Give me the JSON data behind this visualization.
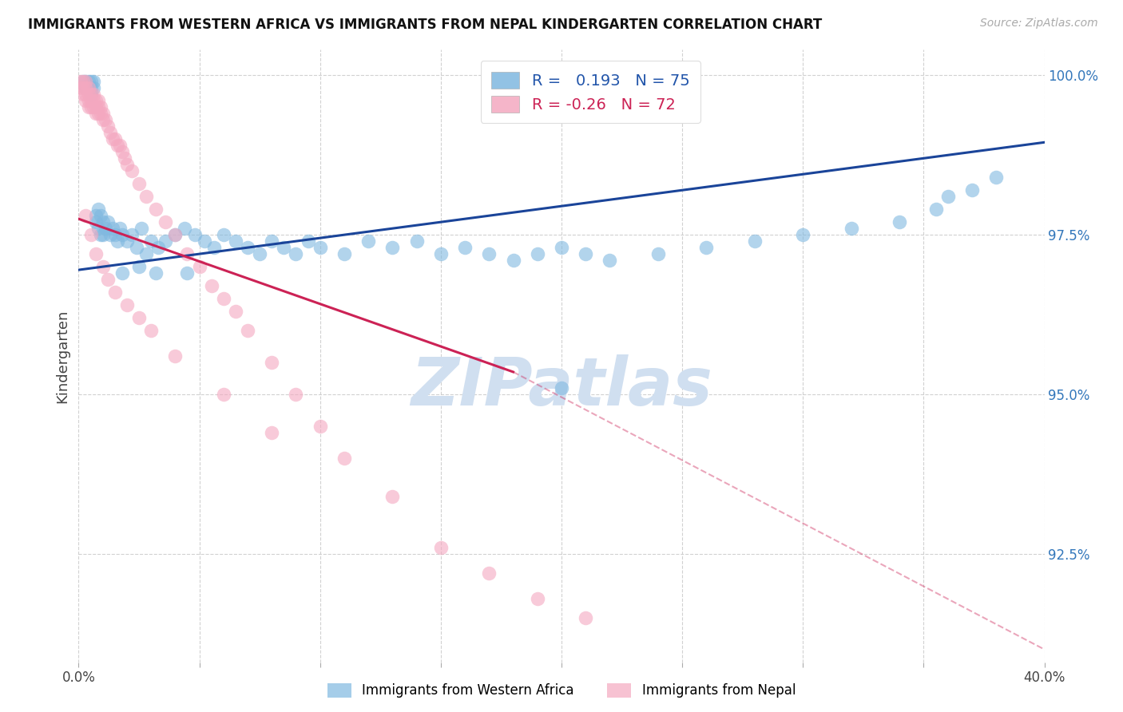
{
  "title": "IMMIGRANTS FROM WESTERN AFRICA VS IMMIGRANTS FROM NEPAL KINDERGARTEN CORRELATION CHART",
  "source": "Source: ZipAtlas.com",
  "xlabel_blue": "Immigrants from Western Africa",
  "xlabel_pink": "Immigrants from Nepal",
  "ylabel": "Kindergarten",
  "xmin": 0.0,
  "xmax": 0.4,
  "ymin": 0.908,
  "ymax": 1.004,
  "ytick_vals": [
    0.925,
    0.95,
    0.975,
    1.0
  ],
  "ytick_labels": [
    "92.5%",
    "95.0%",
    "97.5%",
    "100.0%"
  ],
  "xtick_vals": [
    0.0,
    0.05,
    0.1,
    0.15,
    0.2,
    0.25,
    0.3,
    0.35,
    0.4
  ],
  "xtick_labels": [
    "0.0%",
    "",
    "",
    "",
    "",
    "",
    "",
    "",
    "40.0%"
  ],
  "R_blue": 0.193,
  "N_blue": 75,
  "R_pink": -0.26,
  "N_pink": 72,
  "blue_color": "#7fb8e0",
  "pink_color": "#f4a8c0",
  "blue_line_color": "#1a4499",
  "pink_line_color": "#cc2255",
  "watermark": "ZIPatlas",
  "watermark_color": "#d0dff0",
  "blue_trendline": [
    0.0,
    0.4,
    0.9695,
    0.9895
  ],
  "pink_trendline_solid": [
    0.0,
    0.18,
    0.9775,
    0.9535
  ],
  "pink_trendline_dash": [
    0.18,
    0.4,
    0.9535,
    0.91
  ],
  "blue_x": [
    0.002,
    0.003,
    0.003,
    0.004,
    0.004,
    0.005,
    0.005,
    0.005,
    0.006,
    0.006,
    0.007,
    0.007,
    0.008,
    0.008,
    0.009,
    0.009,
    0.01,
    0.01,
    0.011,
    0.012,
    0.013,
    0.014,
    0.015,
    0.016,
    0.017,
    0.018,
    0.02,
    0.022,
    0.024,
    0.026,
    0.028,
    0.03,
    0.033,
    0.036,
    0.04,
    0.044,
    0.048,
    0.052,
    0.056,
    0.06,
    0.065,
    0.07,
    0.075,
    0.08,
    0.085,
    0.09,
    0.095,
    0.1,
    0.11,
    0.12,
    0.13,
    0.14,
    0.15,
    0.16,
    0.17,
    0.18,
    0.19,
    0.2,
    0.21,
    0.22,
    0.24,
    0.26,
    0.28,
    0.3,
    0.32,
    0.34,
    0.355,
    0.36,
    0.37,
    0.38,
    0.018,
    0.025,
    0.032,
    0.045,
    0.2
  ],
  "blue_y": [
    0.999,
    0.999,
    0.998,
    0.999,
    0.998,
    0.999,
    0.998,
    0.997,
    0.999,
    0.998,
    0.978,
    0.977,
    0.979,
    0.976,
    0.978,
    0.975,
    0.977,
    0.975,
    0.976,
    0.977,
    0.975,
    0.976,
    0.975,
    0.974,
    0.976,
    0.975,
    0.974,
    0.975,
    0.973,
    0.976,
    0.972,
    0.974,
    0.973,
    0.974,
    0.975,
    0.976,
    0.975,
    0.974,
    0.973,
    0.975,
    0.974,
    0.973,
    0.972,
    0.974,
    0.973,
    0.972,
    0.974,
    0.973,
    0.972,
    0.974,
    0.973,
    0.974,
    0.972,
    0.973,
    0.972,
    0.971,
    0.972,
    0.973,
    0.972,
    0.971,
    0.972,
    0.973,
    0.974,
    0.975,
    0.976,
    0.977,
    0.979,
    0.981,
    0.982,
    0.984,
    0.969,
    0.97,
    0.969,
    0.969,
    0.951
  ],
  "pink_x": [
    0.001,
    0.001,
    0.002,
    0.002,
    0.002,
    0.003,
    0.003,
    0.003,
    0.003,
    0.004,
    0.004,
    0.004,
    0.004,
    0.005,
    0.005,
    0.005,
    0.006,
    0.006,
    0.006,
    0.007,
    0.007,
    0.007,
    0.008,
    0.008,
    0.008,
    0.009,
    0.009,
    0.01,
    0.01,
    0.011,
    0.012,
    0.013,
    0.014,
    0.015,
    0.016,
    0.017,
    0.018,
    0.019,
    0.02,
    0.022,
    0.025,
    0.028,
    0.032,
    0.036,
    0.04,
    0.045,
    0.05,
    0.055,
    0.06,
    0.065,
    0.07,
    0.08,
    0.09,
    0.1,
    0.11,
    0.13,
    0.15,
    0.17,
    0.19,
    0.21,
    0.003,
    0.005,
    0.007,
    0.01,
    0.012,
    0.015,
    0.02,
    0.025,
    0.03,
    0.04,
    0.06,
    0.08
  ],
  "pink_y": [
    0.999,
    0.998,
    0.999,
    0.998,
    0.997,
    0.999,
    0.998,
    0.997,
    0.996,
    0.998,
    0.997,
    0.996,
    0.995,
    0.997,
    0.996,
    0.995,
    0.997,
    0.996,
    0.995,
    0.996,
    0.995,
    0.994,
    0.996,
    0.995,
    0.994,
    0.995,
    0.994,
    0.994,
    0.993,
    0.993,
    0.992,
    0.991,
    0.99,
    0.99,
    0.989,
    0.989,
    0.988,
    0.987,
    0.986,
    0.985,
    0.983,
    0.981,
    0.979,
    0.977,
    0.975,
    0.972,
    0.97,
    0.967,
    0.965,
    0.963,
    0.96,
    0.955,
    0.95,
    0.945,
    0.94,
    0.934,
    0.926,
    0.922,
    0.918,
    0.915,
    0.978,
    0.975,
    0.972,
    0.97,
    0.968,
    0.966,
    0.964,
    0.962,
    0.96,
    0.956,
    0.95,
    0.944
  ]
}
